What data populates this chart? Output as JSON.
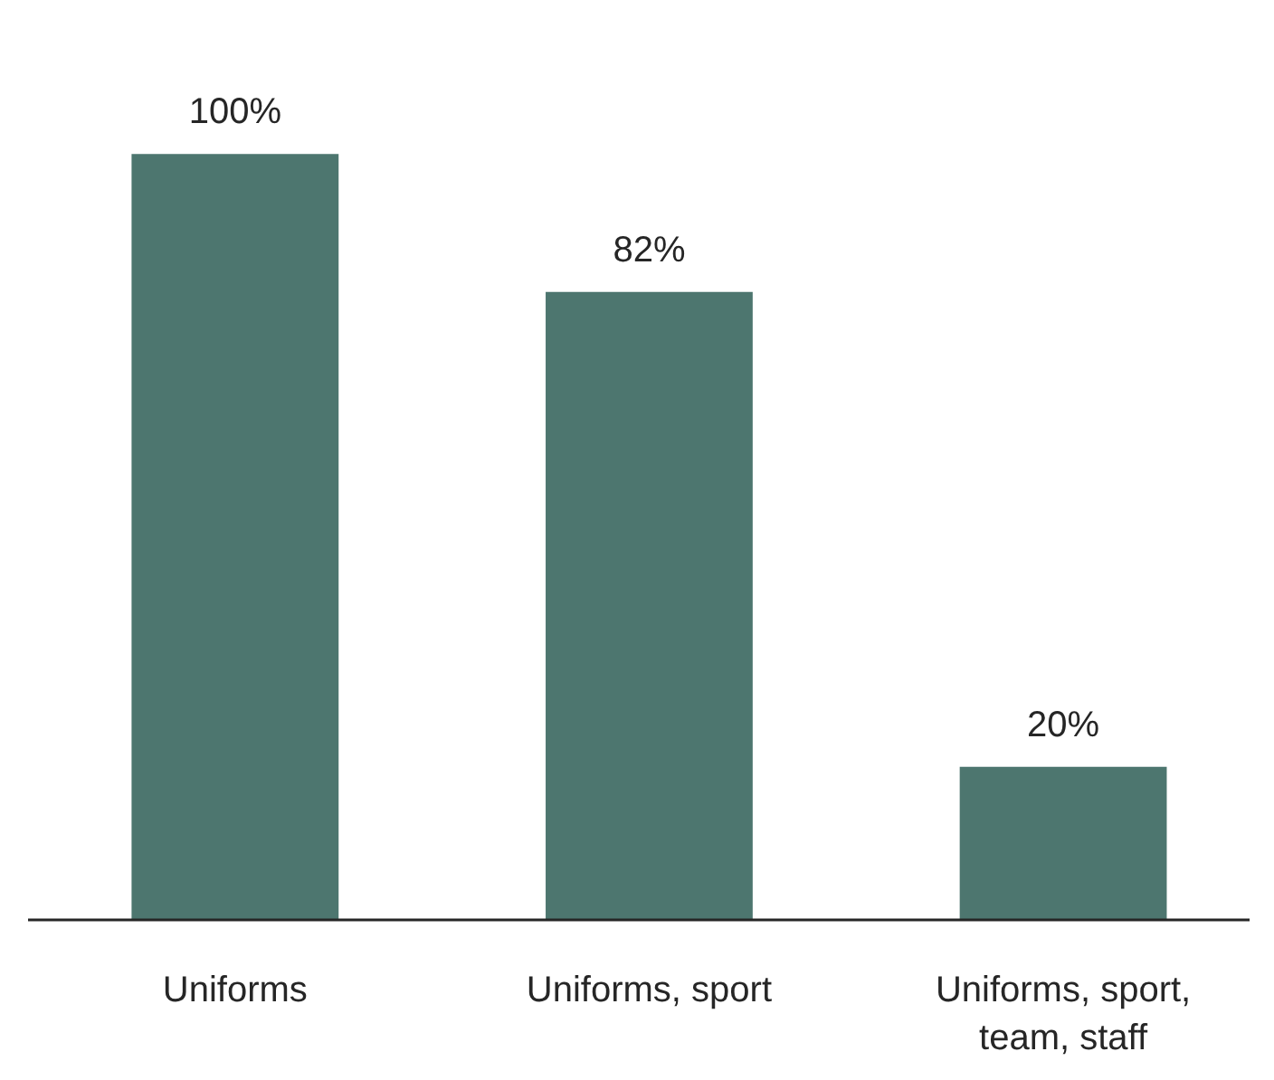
{
  "chart_data": {
    "type": "bar",
    "categories": [
      "Uniforms",
      "Uniforms, sport",
      "Uniforms, sport, team, staff"
    ],
    "values": [
      100,
      82,
      20
    ],
    "value_labels": [
      "100%",
      "82%",
      "20%"
    ],
    "color": "#4d766f",
    "grid": false
  }
}
